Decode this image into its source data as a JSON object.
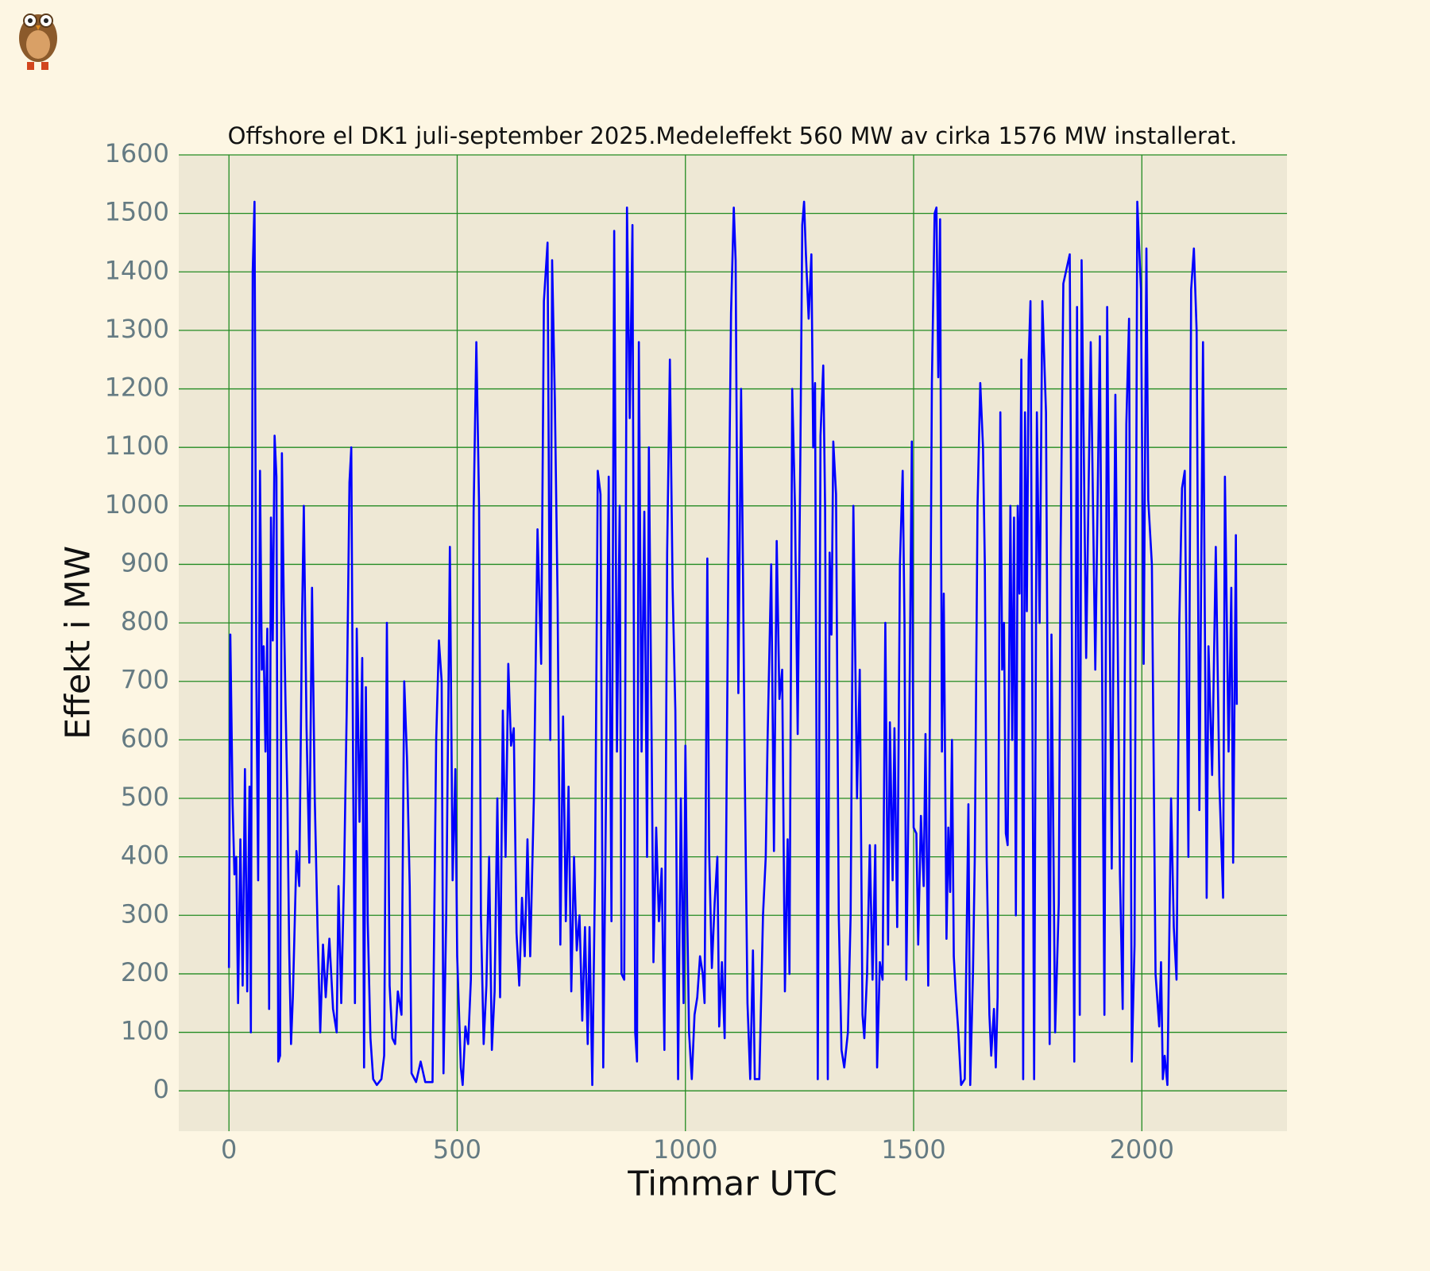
{
  "chart_data": {
    "type": "line",
    "title": "Offshore el DK1 juli-september 2025.Medeleffekt 560 MW av cirka 1576 MW installerat.",
    "xlabel": "Timmar UTC",
    "ylabel": "Effekt i MW",
    "color": "#0000ff",
    "grid": true,
    "grid_color": "#228b22",
    "xlim": [
      -110,
      2318
    ],
    "ylim": [
      -69,
      1600
    ],
    "xticks": [
      0,
      500,
      1000,
      1500,
      2000
    ],
    "yticks": [
      0,
      100,
      200,
      300,
      400,
      500,
      600,
      700,
      800,
      900,
      1000,
      1100,
      1200,
      1300,
      1400,
      1500,
      1600
    ],
    "x": [
      0,
      3,
      8,
      12,
      16,
      20,
      25,
      30,
      35,
      40,
      45,
      48,
      52,
      56,
      60,
      64,
      68,
      72,
      76,
      80,
      84,
      88,
      92,
      96,
      100,
      104,
      108,
      112,
      116,
      120,
      124,
      128,
      132,
      136,
      140,
      148,
      154,
      160,
      164,
      170,
      176,
      182,
      188,
      194,
      200,
      206,
      212,
      220,
      228,
      236,
      240,
      246,
      252,
      258,
      264,
      268,
      272,
      276,
      280,
      286,
      292,
      296,
      300,
      304,
      310,
      316,
      324,
      334,
      340,
      346,
      352,
      358,
      364,
      370,
      378,
      384,
      390,
      396,
      400,
      410,
      420,
      430,
      446,
      454,
      460,
      466,
      470,
      476,
      484,
      490,
      496,
      500,
      508,
      512,
      518,
      524,
      530,
      536,
      542,
      548,
      552,
      558,
      564,
      570,
      576,
      582,
      588,
      594,
      600,
      606,
      612,
      618,
      624,
      630,
      636,
      642,
      648,
      654,
      660,
      668,
      676,
      684,
      690,
      698,
      704,
      708,
      714,
      720,
      726,
      732,
      738,
      744,
      750,
      756,
      762,
      768,
      774,
      780,
      786,
      790,
      796,
      802,
      808,
      814,
      820,
      826,
      832,
      838,
      844,
      850,
      856,
      860,
      866,
      872,
      878,
      884,
      890,
      894,
      898,
      904,
      910,
      916,
      920,
      926,
      930,
      936,
      942,
      948,
      954,
      960,
      966,
      972,
      978,
      984,
      990,
      996,
      1000,
      1004,
      1008,
      1014,
      1020,
      1026,
      1032,
      1038,
      1042,
      1048,
      1052,
      1058,
      1064,
      1070,
      1074,
      1080,
      1086,
      1094,
      1100,
      1106,
      1110,
      1116,
      1122,
      1126,
      1130,
      1136,
      1142,
      1148,
      1152,
      1162,
      1170,
      1176,
      1180,
      1188,
      1194,
      1200,
      1206,
      1212,
      1218,
      1224,
      1228,
      1234,
      1240,
      1246,
      1252,
      1256,
      1260,
      1264,
      1270,
      1276,
      1280,
      1284,
      1290,
      1296,
      1302,
      1306,
      1312,
      1316,
      1320,
      1324,
      1330,
      1336,
      1342,
      1348,
      1356,
      1362,
      1368,
      1376,
      1382,
      1388,
      1392,
      1398,
      1404,
      1410,
      1416,
      1420,
      1426,
      1432,
      1438,
      1444,
      1448,
      1454,
      1458,
      1464,
      1470,
      1476,
      1480,
      1484,
      1490,
      1496,
      1500,
      1506,
      1510,
      1516,
      1522,
      1526,
      1532,
      1536,
      1540,
      1546,
      1550,
      1554,
      1558,
      1562,
      1566,
      1572,
      1576,
      1580,
      1584,
      1588,
      1592,
      1598,
      1604,
      1612,
      1620,
      1624,
      1630,
      1634,
      1640,
      1646,
      1652,
      1656,
      1660,
      1666,
      1670,
      1676,
      1680,
      1684,
      1690,
      1694,
      1698,
      1702,
      1706,
      1712,
      1716,
      1720,
      1724,
      1728,
      1732,
      1736,
      1740,
      1744,
      1748,
      1752,
      1756,
      1764,
      1770,
      1776,
      1782,
      1790,
      1798,
      1802,
      1810,
      1818,
      1822,
      1828,
      1842,
      1852,
      1858,
      1864,
      1868,
      1878,
      1888,
      1898,
      1908,
      1918,
      1924,
      1934,
      1942,
      1952,
      1958,
      1966,
      1972,
      1978,
      1984,
      1990,
      1998,
      2004,
      2010,
      2014,
      2022,
      2030,
      2038,
      2042,
      2046,
      2050,
      2056,
      2064,
      2070,
      2076,
      2082,
      2088,
      2094,
      2102,
      2108,
      2114,
      2120,
      2126,
      2134,
      2142,
      2146,
      2154,
      2162,
      2170,
      2178,
      2182,
      2190,
      2196,
      2200,
      2206,
      2208
    ],
    "values": [
      210,
      780,
      490,
      370,
      400,
      150,
      430,
      180,
      550,
      170,
      520,
      100,
      1400,
      1520,
      700,
      360,
      1060,
      720,
      760,
      580,
      790,
      140,
      980,
      770,
      1120,
      1050,
      50,
      60,
      1090,
      840,
      660,
      500,
      240,
      80,
      160,
      410,
      350,
      800,
      1000,
      620,
      390,
      860,
      500,
      280,
      100,
      250,
      160,
      260,
      140,
      100,
      350,
      150,
      360,
      650,
      1040,
      1100,
      550,
      150,
      790,
      460,
      740,
      40,
      690,
      290,
      90,
      20,
      10,
      20,
      60,
      800,
      180,
      90,
      80,
      170,
      130,
      700,
      570,
      350,
      30,
      15,
      50,
      15,
      15,
      600,
      770,
      700,
      30,
      300,
      930,
      360,
      550,
      230,
      40,
      10,
      110,
      80,
      190,
      990,
      1280,
      1000,
      300,
      80,
      180,
      400,
      70,
      170,
      500,
      160,
      650,
      400,
      730,
      590,
      620,
      270,
      180,
      330,
      230,
      430,
      230,
      500,
      960,
      730,
      1350,
      1450,
      600,
      1420,
      1180,
      840,
      250,
      640,
      290,
      520,
      170,
      400,
      240,
      300,
      120,
      280,
      80,
      280,
      10,
      370,
      1060,
      1020,
      40,
      500,
      1050,
      290,
      1470,
      580,
      1000,
      200,
      190,
      1510,
      1150,
      1480,
      100,
      50,
      1280,
      580,
      990,
      400,
      1100,
      600,
      220,
      450,
      290,
      380,
      70,
      920,
      1250,
      860,
      650,
      20,
      500,
      150,
      590,
      300,
      100,
      20,
      130,
      160,
      230,
      200,
      150,
      910,
      410,
      210,
      320,
      400,
      110,
      220,
      90,
      900,
      1330,
      1510,
      1420,
      680,
      1200,
      900,
      550,
      150,
      20,
      240,
      20,
      20,
      300,
      400,
      600,
      900,
      410,
      940,
      670,
      720,
      170,
      430,
      200,
      1200,
      1000,
      610,
      1100,
      1480,
      1520,
      1430,
      1320,
      1430,
      1100,
      1210,
      20,
      1120,
      1240,
      1000,
      20,
      920,
      780,
      1110,
      1020,
      300,
      70,
      40,
      100,
      300,
      1000,
      500,
      720,
      130,
      90,
      200,
      420,
      190,
      420,
      40,
      220,
      190,
      800,
      250,
      630,
      360,
      620,
      280,
      900,
      1060,
      800,
      190,
      580,
      1110,
      450,
      440,
      250,
      470,
      350,
      610,
      180,
      700,
      1210,
      1500,
      1510,
      1220,
      1490,
      580,
      850,
      260,
      450,
      340,
      600,
      230,
      170,
      100,
      10,
      20,
      490,
      10,
      200,
      400,
      1000,
      1210,
      1100,
      900,
      400,
      130,
      60,
      140,
      40,
      160,
      1160,
      720,
      800,
      440,
      420,
      1000,
      600,
      980,
      300,
      1000,
      850,
      1250,
      20,
      1160,
      820,
      1250,
      1350,
      20,
      1160,
      800,
      1350,
      1160,
      80,
      780,
      100,
      320,
      920,
      1380,
      1430,
      50,
      1340,
      130,
      1420,
      740,
      1280,
      720,
      1290,
      130,
      1340,
      380,
      1190,
      370,
      140,
      1140,
      1320,
      50,
      250,
      1520,
      1370,
      730,
      1440,
      1010,
      900,
      200,
      110,
      220,
      20,
      60,
      10,
      500,
      280,
      190,
      800,
      1030,
      1060,
      400,
      1370,
      1440,
      1300,
      480,
      1280,
      330,
      760,
      540,
      930,
      520,
      330,
      1050,
      580,
      860,
      390,
      950,
      660
    ]
  }
}
